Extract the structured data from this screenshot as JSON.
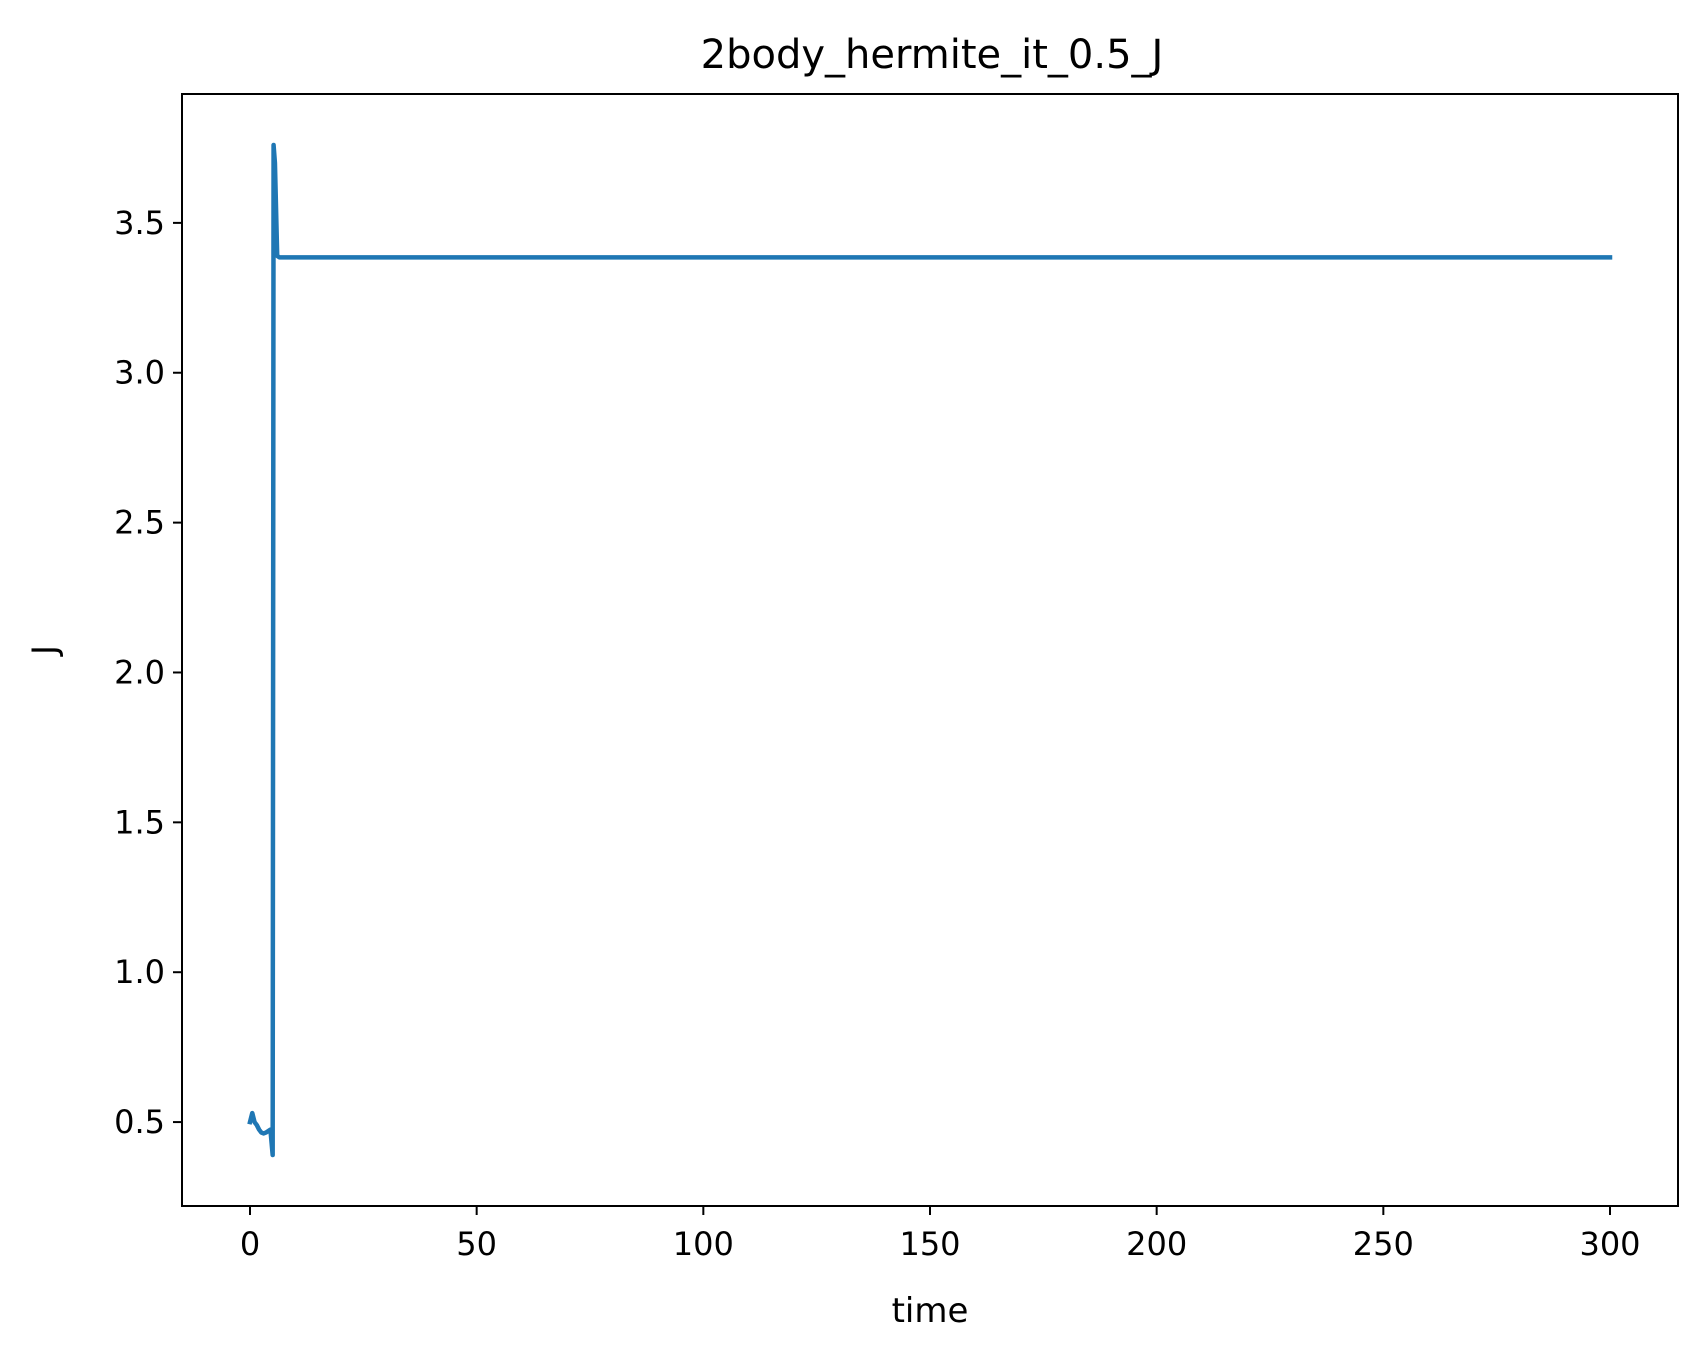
{
  "chart_data": {
    "type": "line",
    "title": "2body_hermite_it_0.5_J",
    "xlabel": "time",
    "ylabel": "J",
    "xlim": [
      -15,
      315
    ],
    "ylim": [
      0.22,
      3.93
    ],
    "xticks": [
      0,
      50,
      100,
      150,
      200,
      250,
      300
    ],
    "xtick_labels": [
      "0",
      "50",
      "100",
      "150",
      "200",
      "250",
      "300"
    ],
    "yticks": [
      0.5,
      1.0,
      1.5,
      2.0,
      2.5,
      3.0,
      3.5
    ],
    "ytick_labels": [
      "0.5",
      "1.0",
      "1.5",
      "2.0",
      "2.5",
      "3.0",
      "3.5"
    ],
    "grid": false,
    "series": [
      {
        "color": "#1f77b4",
        "x": [
          0,
          0.5,
          1,
          1.5,
          2,
          2.5,
          3,
          3.5,
          4,
          4.5,
          5,
          5.2,
          5.5,
          6,
          6.5,
          7,
          10,
          50,
          100,
          150,
          200,
          250,
          300
        ],
        "y": [
          0.5,
          0.53,
          0.5,
          0.49,
          0.475,
          0.465,
          0.462,
          0.465,
          0.47,
          0.475,
          0.39,
          3.76,
          3.7,
          3.39,
          3.385,
          3.385,
          3.385,
          3.385,
          3.385,
          3.385,
          3.385,
          3.385,
          3.385
        ]
      }
    ]
  }
}
